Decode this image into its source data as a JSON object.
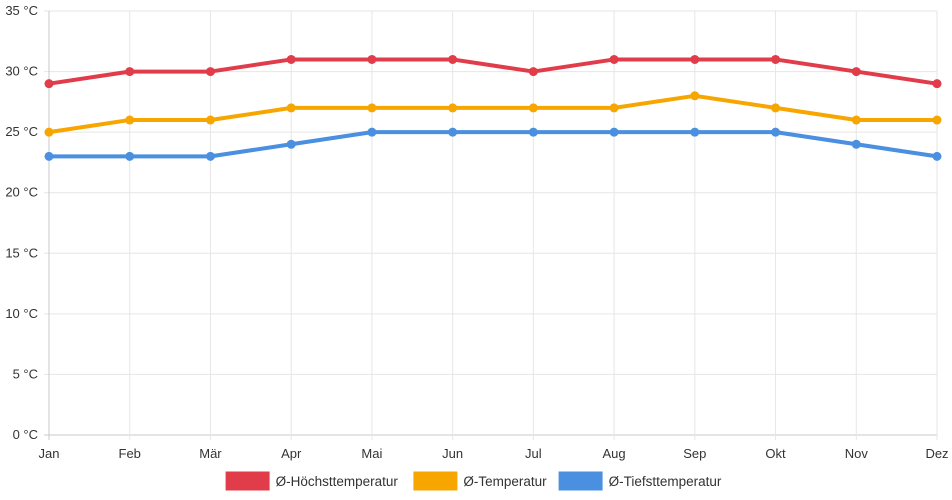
{
  "chart_data": {
    "type": "line",
    "title": "",
    "xlabel": "",
    "ylabel": "",
    "y_unit_suffix": " °C",
    "ylim": [
      0,
      35
    ],
    "y_ticks": [
      0,
      5,
      10,
      15,
      20,
      25,
      30,
      35
    ],
    "y_tick_labels": [
      "0 °C",
      "5 °C",
      "10 °C",
      "15 °C",
      "20 °C",
      "25 °C",
      "30 °C",
      "35 °C"
    ],
    "categories": [
      "Jan",
      "Feb",
      "Mär",
      "Apr",
      "Mai",
      "Jun",
      "Jul",
      "Aug",
      "Sep",
      "Okt",
      "Nov",
      "Dez"
    ],
    "grid": true,
    "legend_position": "bottom",
    "series": [
      {
        "name": "Ø-Höchsttemperatur",
        "color": "#e03c4a",
        "values": [
          29,
          30,
          30,
          31,
          31,
          31,
          30,
          31,
          31,
          31,
          30,
          29
        ]
      },
      {
        "name": "Ø-Temperatur",
        "color": "#f7a600",
        "values": [
          25,
          26,
          26,
          27,
          27,
          27,
          27,
          27,
          28,
          27,
          26,
          26
        ]
      },
      {
        "name": "Ø-Tiefsttemperatur",
        "color": "#4a8fe0",
        "values": [
          23,
          23,
          23,
          24,
          25,
          25,
          25,
          25,
          25,
          25,
          24,
          23
        ]
      }
    ]
  }
}
